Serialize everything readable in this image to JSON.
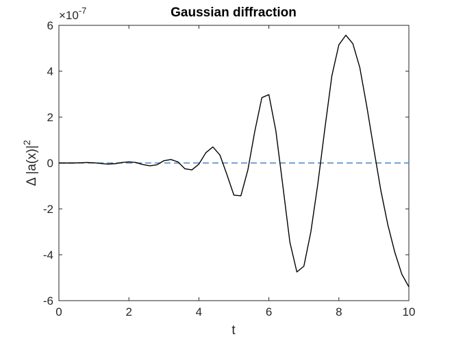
{
  "chart_data": {
    "type": "line",
    "title": "Gaussian diffraction",
    "xlabel": "t",
    "ylabel_main": "Δ |a(x)|",
    "ylabel_sup": "2",
    "y_exponent_label": "×10",
    "y_exponent_power": "-7",
    "xlim": [
      0,
      10
    ],
    "ylim": [
      -6,
      6
    ],
    "xticks": [
      0,
      2,
      4,
      6,
      8,
      10
    ],
    "yticks": [
      -6,
      -4,
      -2,
      0,
      2,
      4,
      6
    ],
    "grid": false,
    "series": [
      {
        "style": "solid",
        "color": "#000000",
        "x": [
          0,
          0.2,
          0.4,
          0.6,
          0.8,
          1.0,
          1.2,
          1.4,
          1.6,
          1.8,
          2.0,
          2.2,
          2.4,
          2.6,
          2.8,
          3.0,
          3.2,
          3.4,
          3.6,
          3.8,
          4.0,
          4.2,
          4.4,
          4.6,
          4.8,
          5.0,
          5.2,
          5.4,
          5.6,
          5.8,
          6.0,
          6.2,
          6.4,
          6.6,
          6.8,
          7.0,
          7.2,
          7.4,
          7.6,
          7.8,
          8.0,
          8.2,
          8.4,
          8.6,
          8.8,
          9.0,
          9.2,
          9.4,
          9.6,
          9.8,
          10.0
        ],
        "y": [
          0.0,
          0.0,
          0.0,
          0.01,
          0.02,
          0.01,
          -0.02,
          -0.05,
          -0.03,
          0.02,
          0.05,
          0.02,
          -0.07,
          -0.12,
          -0.08,
          0.1,
          0.15,
          0.05,
          -0.25,
          -0.3,
          -0.05,
          0.45,
          0.7,
          0.35,
          -0.5,
          -1.4,
          -1.43,
          -0.3,
          1.4,
          2.85,
          2.98,
          1.4,
          -1.0,
          -3.45,
          -4.75,
          -4.5,
          -3.0,
          -0.9,
          1.5,
          3.8,
          5.15,
          5.57,
          5.2,
          4.15,
          2.45,
          0.6,
          -1.2,
          -2.7,
          -3.9,
          -4.85,
          -5.4
        ]
      },
      {
        "style": "dashed",
        "color": "#4a86c0",
        "x": [
          0,
          10
        ],
        "y": [
          0,
          0
        ]
      }
    ]
  }
}
